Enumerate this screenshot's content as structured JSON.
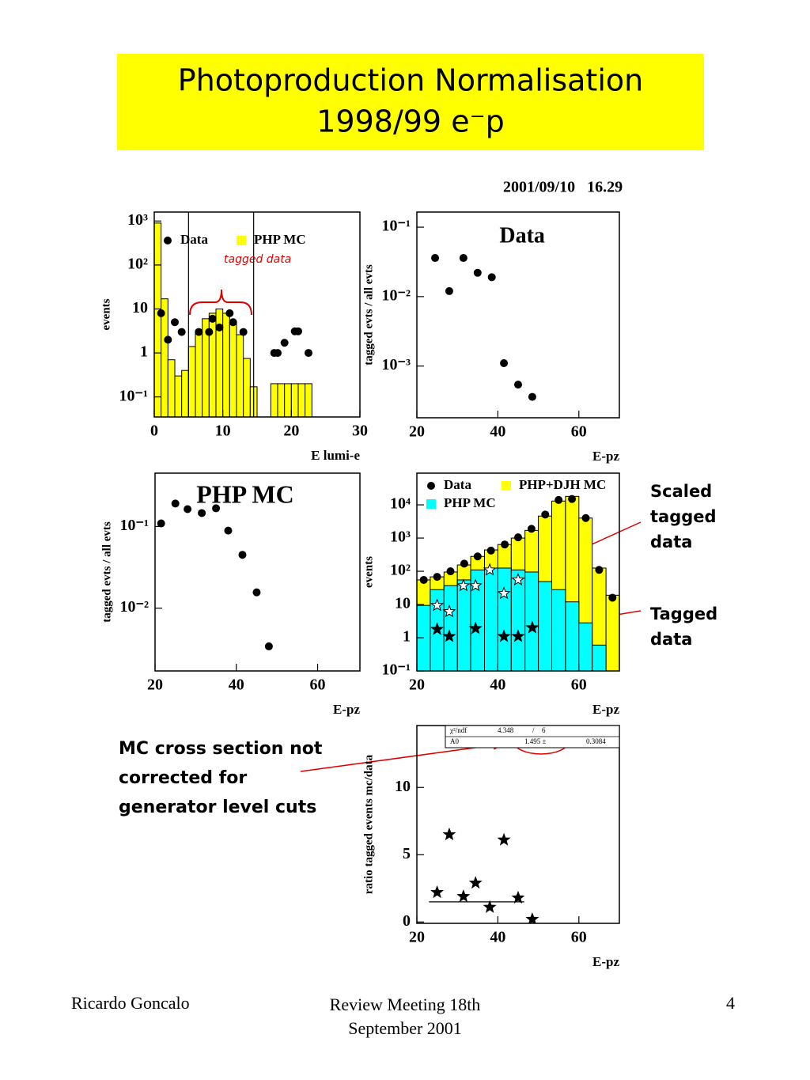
{
  "header": {
    "title": [
      "Photoproduction Normalisation",
      "1998/99 e⁻p"
    ],
    "timestamp": "2001/09/10   16.29"
  },
  "chart_data": [
    {
      "type": "histogram",
      "xlabel": "E lumi-e",
      "ylabel": "events",
      "annotation": "tagged data",
      "xlim": [
        0,
        30
      ],
      "xticks": [
        0,
        10,
        20,
        30
      ],
      "log_y": true,
      "ylim": [
        0.035,
        1600
      ],
      "yticks": [
        {
          "value": 1000,
          "label": "10³"
        },
        {
          "value": 100,
          "label": "10²"
        },
        10,
        1,
        {
          "value": 0.1,
          "label": "10⁻¹"
        }
      ],
      "vlines": [
        5,
        14.5
      ],
      "histograms": [
        {
          "name": "PHP MC",
          "color": "#ffff00",
          "bins": [
            0,
            1,
            2,
            3,
            4,
            5,
            6,
            7,
            8,
            9,
            10,
            11,
            12,
            13,
            14,
            15,
            16,
            17,
            18,
            19,
            20,
            21,
            22,
            23
          ],
          "values": [
            900,
            17,
            0.7,
            0.3,
            0.4,
            1.4,
            3,
            6,
            8,
            10,
            8,
            5,
            2.6,
            0.75,
            0.17,
            0,
            0,
            0.2,
            0.2,
            0.2,
            0.2,
            0.2,
            0.2
          ]
        }
      ],
      "points": [
        {
          "name": "Data",
          "color": "#000000",
          "marker": "circle",
          "x": [
            1,
            2,
            3,
            4,
            6.5,
            8,
            8.5,
            9.5,
            11,
            11.5,
            13,
            17.5,
            18,
            19,
            20.5,
            21,
            22.5
          ],
          "values": [
            8,
            2,
            5,
            3,
            3,
            3,
            6,
            3.8,
            8,
            5,
            3,
            1,
            1,
            1.7,
            3.1,
            3.1,
            1
          ]
        }
      ]
    },
    {
      "type": "scatter",
      "title": "Data",
      "xlabel": "E-pz",
      "ylabel": "tagged evts / all evts",
      "xlim": [
        20,
        70
      ],
      "xticks": [
        20,
        40,
        60
      ],
      "log_y": true,
      "ylim": [
        0.00018,
        0.165
      ],
      "yticks": [
        {
          "value": 0.1,
          "label": "10⁻¹"
        },
        {
          "value": 0.01,
          "label": "10⁻²"
        },
        {
          "value": 0.001,
          "label": "10⁻³"
        }
      ],
      "points": [
        {
          "color": "#000000",
          "marker": "circle",
          "x": [
            24.5,
            28,
            31.5,
            35,
            38.5,
            41.5,
            45,
            48.5
          ],
          "values": [
            0.036,
            0.012,
            0.036,
            0.022,
            0.019,
            0.0011,
            0.00054,
            0.00036
          ]
        }
      ]
    },
    {
      "type": "scatter",
      "title": "PHP MC",
      "xlabel": "E-pz",
      "ylabel": "tagged evts / all evts",
      "xlim": [
        20,
        70.4
      ],
      "xticks": [
        20,
        40,
        60
      ],
      "log_y": true,
      "ylim": [
        0.0017,
        0.45
      ],
      "yticks": [
        {
          "value": 0.1,
          "label": "10⁻¹"
        },
        {
          "value": 0.01,
          "label": "10⁻²"
        }
      ],
      "points": [
        {
          "color": "#000000",
          "marker": "circle",
          "x": [
            21.5,
            25,
            28,
            31.5,
            35,
            38,
            41.5,
            45,
            48
          ],
          "values": [
            0.109,
            0.191,
            0.163,
            0.146,
            0.167,
            0.089,
            0.045,
            0.0156,
            0.0034
          ]
        }
      ]
    },
    {
      "type": "histogram",
      "xlabel": "E-pz",
      "ylabel": "events",
      "xlim": [
        20,
        70
      ],
      "xticks": [
        20,
        40,
        60
      ],
      "log_y": true,
      "ylim": [
        0.1,
        90000
      ],
      "yticks": [
        {
          "value": 10000,
          "label": "10⁴"
        },
        {
          "value": 1000,
          "label": "10³"
        },
        {
          "value": 100,
          "label": "10²"
        },
        10,
        1,
        {
          "value": 0.1,
          "label": "10⁻¹"
        }
      ],
      "histograms": [
        {
          "name": "PHP+DJH MC",
          "color": "#ffff00",
          "bins": [
            20,
            23.3,
            26.7,
            30,
            33.3,
            36.7,
            40,
            43.3,
            46.7,
            50,
            53.3,
            56.7,
            60,
            63.3,
            66.7,
            70
          ],
          "values": [
            55,
            68,
            95,
            155,
            280,
            440,
            640,
            1000,
            1700,
            4600,
            13000,
            18000,
            4000,
            125,
            19
          ]
        },
        {
          "name": "PHP MC",
          "color": "#00ffff",
          "bins": [
            20,
            23.3,
            26.7,
            30,
            33.3,
            36.7,
            40,
            43.3,
            46.7,
            50,
            53.3,
            56.7,
            60,
            63.3,
            66.7,
            70
          ],
          "values": [
            9.4,
            28,
            37,
            55,
            110,
            125,
            125,
            110,
            95,
            49,
            28,
            12,
            2.8,
            0.6,
            0
          ]
        }
      ],
      "points": [
        {
          "name": "Data",
          "color": "#000000",
          "marker": "circle",
          "x": [
            21.7,
            25,
            28.3,
            31.7,
            35,
            38.3,
            41.7,
            45,
            48.3,
            51.7,
            55,
            58.3,
            61.7,
            65,
            68.3
          ],
          "values": [
            55,
            68,
            100,
            170,
            280,
            420,
            640,
            1050,
            1900,
            5100,
            14000,
            15000,
            4000,
            110,
            16
          ]
        },
        {
          "name": "Scaled tagged data",
          "color": "#000000",
          "marker": "open-star",
          "x": [
            25,
            28,
            31.5,
            34.5,
            38,
            41.5,
            45
          ],
          "values": [
            9.4,
            6.1,
            37,
            37,
            110,
            21.6,
            55
          ]
        },
        {
          "name": "Tagged data",
          "color": "#000000",
          "marker": "star",
          "x": [
            25,
            28,
            34.5,
            41.5,
            45,
            48.5
          ],
          "values": [
            1.8,
            1.1,
            1.9,
            1.1,
            1.1,
            2
          ]
        }
      ]
    },
    {
      "type": "scatter",
      "xlabel": "E-pz",
      "ylabel": "ratio tagged events mc/data",
      "xlim": [
        20,
        70
      ],
      "xticks": [
        20,
        40,
        60
      ],
      "log_y": false,
      "ylim": [
        -0.1,
        14.6
      ],
      "yticks": [
        0,
        5,
        10
      ],
      "stats": {
        "chi2_label": "χ²/ndf",
        "chi2": 4.348,
        "chi2_sep": "/",
        "ndf": 6,
        "fit_label": "A0",
        "fit_value": 1.495,
        "fit_value_label": "1.495 ±",
        "fit_error": 0.3084,
        "fit_x_range": [
          23,
          46.5
        ]
      },
      "points": [
        {
          "color": "#000000",
          "marker": "star",
          "x": [
            25,
            28,
            31.5,
            34.5,
            38,
            41.5,
            45,
            48.5
          ],
          "values": [
            2.2,
            6.5,
            1.9,
            2.9,
            1.1,
            6.1,
            1.8,
            0.2
          ]
        }
      ]
    }
  ],
  "note": "MC cross section not corrected for generator level cuts",
  "footer": {
    "author": "Ricardo Goncalo",
    "event": "Review Meeting 18th September 2001",
    "page": "4"
  }
}
